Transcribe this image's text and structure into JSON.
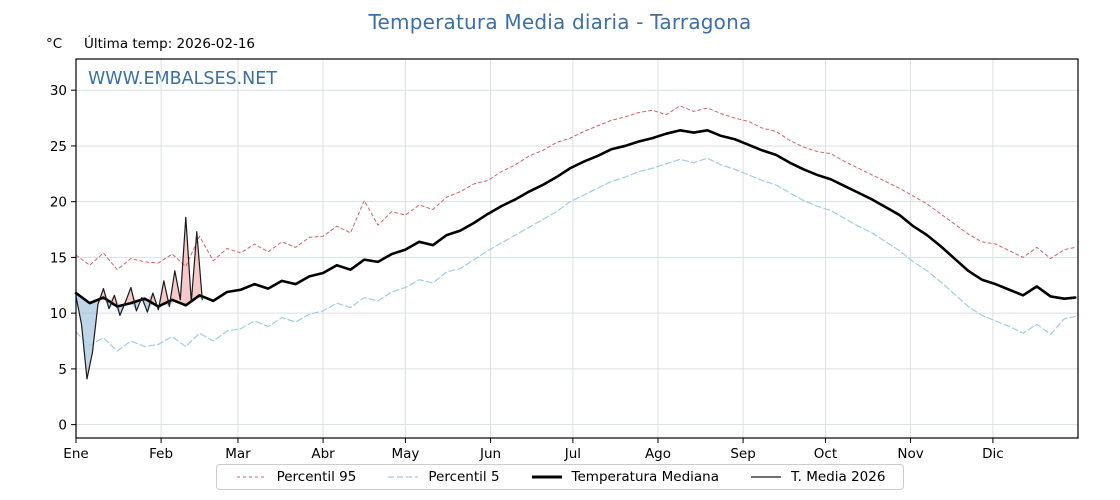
{
  "page": {
    "title": "Temperatura Media diaria - Tarragona",
    "unit_label": "°C",
    "last_temp_label": "Última temp: 2026-02-16",
    "watermark": "WWW.EMBALSES.NET"
  },
  "colors": {
    "title": "#3a6fa8",
    "watermark": "#3a6fa8",
    "p95": "#d95f5f",
    "p5": "#9fcde6",
    "median": "#000000",
    "t2026": "#1a1a1a",
    "fill_above": "#ef9e9e",
    "fill_below": "#8cb4d6",
    "grid": "#dcdfe3"
  },
  "legend": [
    {
      "id": "p95",
      "label": "Percentil 95"
    },
    {
      "id": "p5",
      "label": "Percentil 5"
    },
    {
      "id": "median",
      "label": "Temperatura Mediana"
    },
    {
      "id": "t2026",
      "label": "T. Media 2026"
    }
  ],
  "chart_data": {
    "type": "line",
    "title": "Temperatura Media diaria - Tarragona",
    "ylabel": "°C",
    "ylim": [
      -1.2,
      32.8
    ],
    "xlim_days": [
      1,
      366
    ],
    "yticks": [
      0,
      5,
      10,
      15,
      20,
      25,
      30
    ],
    "grid": true,
    "legend_position": "bottom",
    "annotation": "Última temp: 2026-02-16",
    "month_ticks": {
      "labels": [
        "Ene",
        "Feb",
        "Mar",
        "Abr",
        "May",
        "Jun",
        "Jul",
        "Ago",
        "Sep",
        "Oct",
        "Nov",
        "Dic"
      ],
      "start_days": [
        1,
        32,
        60,
        91,
        121,
        152,
        182,
        213,
        244,
        274,
        305,
        335
      ]
    },
    "x_days": [
      1,
      6,
      11,
      16,
      21,
      26,
      31,
      36,
      41,
      46,
      51,
      56,
      61,
      66,
      71,
      76,
      81,
      86,
      91,
      96,
      101,
      106,
      111,
      116,
      121,
      126,
      131,
      136,
      141,
      146,
      151,
      156,
      161,
      166,
      171,
      176,
      181,
      186,
      191,
      196,
      201,
      206,
      211,
      216,
      221,
      226,
      231,
      236,
      241,
      246,
      251,
      256,
      261,
      266,
      271,
      276,
      281,
      286,
      291,
      296,
      301,
      306,
      311,
      316,
      321,
      326,
      331,
      336,
      341,
      346,
      351,
      356,
      361,
      365
    ],
    "series": [
      {
        "name": "Percentil 95",
        "values": [
          15.2,
          14.3,
          15.4,
          13.9,
          14.9,
          14.6,
          14.5,
          15.3,
          14.2,
          16.9,
          14.7,
          15.8,
          15.4,
          16.2,
          15.5,
          16.4,
          15.9,
          16.8,
          16.9,
          17.8,
          17.2,
          20.1,
          17.9,
          19.1,
          18.8,
          19.7,
          19.3,
          20.4,
          20.9,
          21.6,
          21.9,
          22.7,
          23.3,
          24.1,
          24.6,
          25.3,
          25.7,
          26.3,
          26.8,
          27.3,
          27.6,
          28.0,
          28.2,
          27.8,
          28.6,
          28.1,
          28.4,
          27.9,
          27.5,
          27.2,
          26.6,
          26.3,
          25.5,
          24.9,
          24.5,
          24.3,
          23.6,
          23.0,
          22.4,
          21.8,
          21.2,
          20.5,
          19.8,
          18.9,
          18.0,
          17.1,
          16.4,
          16.2,
          15.6,
          15.0,
          15.9,
          14.9,
          15.7,
          15.9
        ]
      },
      {
        "name": "Percentil 5",
        "values": [
          8.3,
          7.1,
          7.8,
          6.6,
          7.5,
          7.0,
          7.2,
          7.9,
          7.0,
          8.2,
          7.5,
          8.4,
          8.6,
          9.3,
          8.8,
          9.6,
          9.2,
          9.9,
          10.2,
          10.9,
          10.5,
          11.4,
          11.1,
          11.9,
          12.3,
          13.0,
          12.7,
          13.7,
          14.0,
          14.8,
          15.6,
          16.3,
          17.0,
          17.7,
          18.4,
          19.1,
          20.0,
          20.6,
          21.2,
          21.8,
          22.2,
          22.7,
          23.0,
          23.4,
          23.8,
          23.5,
          23.9,
          23.3,
          22.9,
          22.4,
          21.9,
          21.5,
          20.8,
          20.1,
          19.6,
          19.2,
          18.5,
          17.8,
          17.2,
          16.4,
          15.6,
          14.6,
          13.8,
          12.8,
          11.7,
          10.6,
          9.8,
          9.3,
          8.8,
          8.2,
          9.0,
          8.1,
          9.5,
          9.7
        ]
      },
      {
        "name": "Temperatura Mediana",
        "values": [
          11.8,
          10.9,
          11.4,
          10.6,
          10.9,
          11.3,
          10.6,
          11.2,
          10.7,
          11.6,
          11.1,
          11.9,
          12.1,
          12.6,
          12.2,
          12.9,
          12.6,
          13.3,
          13.6,
          14.3,
          13.9,
          14.8,
          14.6,
          15.3,
          15.7,
          16.4,
          16.1,
          17.0,
          17.4,
          18.1,
          18.9,
          19.6,
          20.2,
          20.9,
          21.5,
          22.2,
          23.0,
          23.6,
          24.1,
          24.7,
          25.0,
          25.4,
          25.7,
          26.1,
          26.4,
          26.2,
          26.4,
          25.9,
          25.6,
          25.1,
          24.6,
          24.2,
          23.5,
          22.9,
          22.4,
          22.0,
          21.4,
          20.8,
          20.2,
          19.5,
          18.8,
          17.8,
          17.0,
          16.0,
          14.9,
          13.8,
          13.0,
          12.6,
          12.1,
          11.6,
          12.4,
          11.5,
          11.3,
          11.4
        ]
      },
      {
        "name": "T. Media 2026",
        "x_days": [
          1,
          3,
          5,
          7,
          9,
          11,
          13,
          15,
          17,
          19,
          21,
          23,
          25,
          27,
          29,
          31,
          33,
          35,
          37,
          39,
          41,
          43,
          45,
          47
        ],
        "values": [
          11.5,
          9.0,
          4.1,
          6.5,
          10.8,
          12.2,
          10.4,
          11.6,
          9.8,
          11.0,
          12.3,
          10.2,
          11.4,
          10.1,
          11.8,
          10.3,
          12.9,
          10.6,
          13.8,
          11.2,
          18.6,
          11.0,
          17.3,
          11.2
        ]
      }
    ]
  }
}
